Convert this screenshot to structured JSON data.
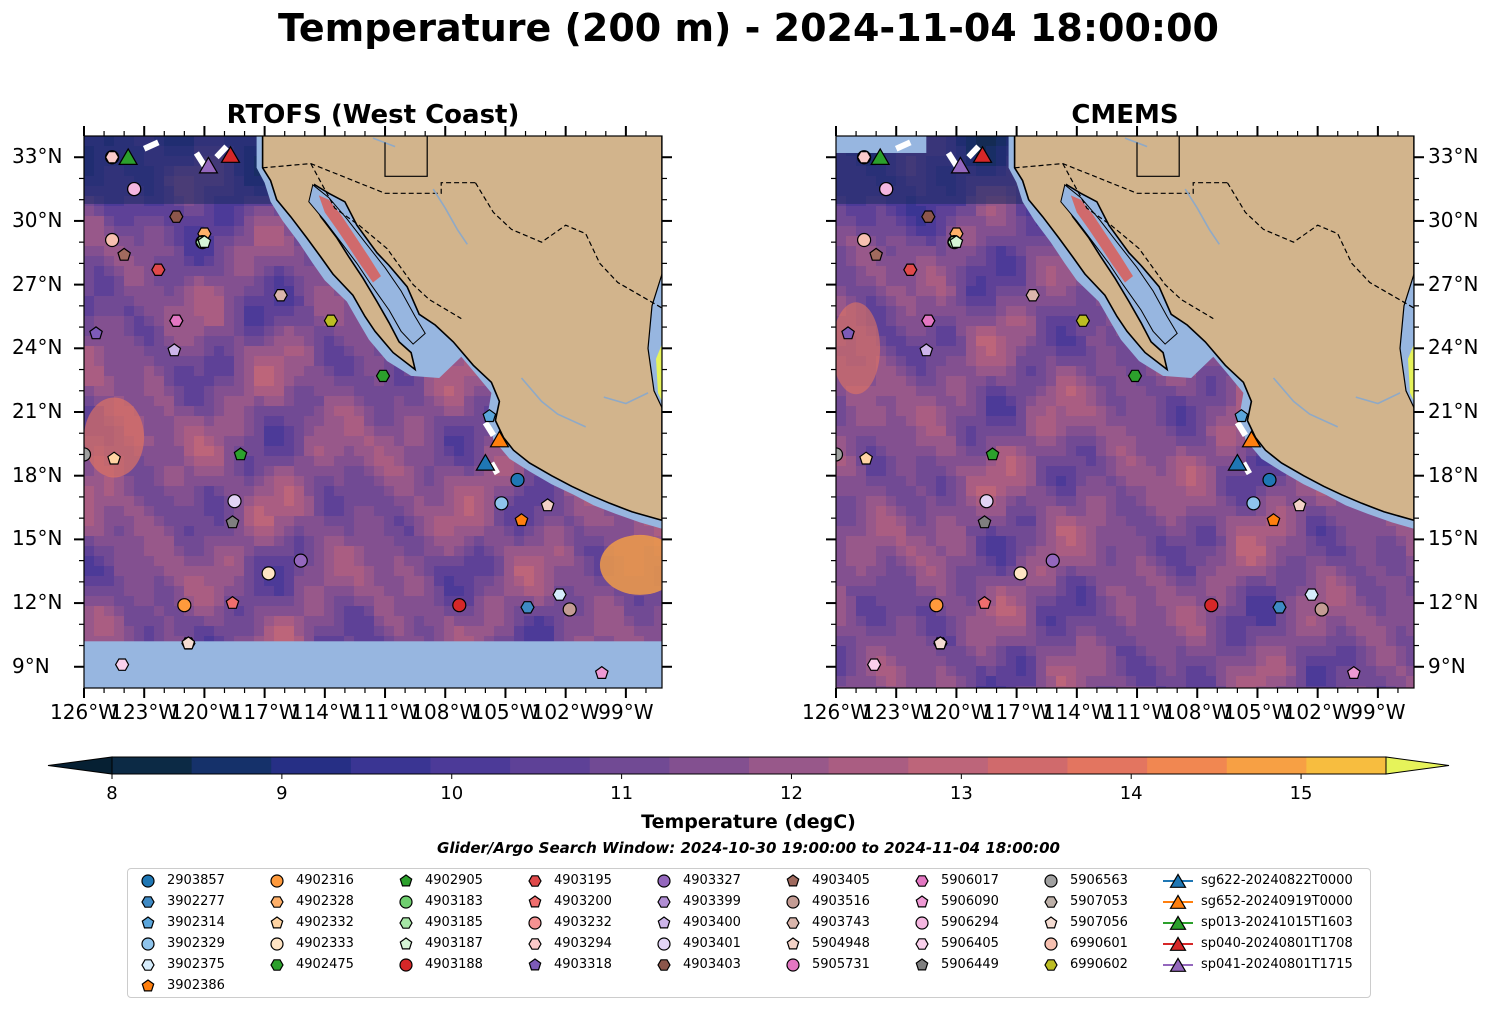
{
  "title": "Temperature (200 m) - 2024-11-04 18:00:00",
  "panels": [
    {
      "title": "RTOFS (West Coast)"
    },
    {
      "title": "CMEMS"
    }
  ],
  "lat_ticks": [
    "33°N",
    "30°N",
    "27°N",
    "24°N",
    "21°N",
    "18°N",
    "15°N",
    "12°N",
    "9°N"
  ],
  "lat_values": [
    33,
    30,
    27,
    24,
    21,
    18,
    15,
    12,
    9
  ],
  "lon_ticks": [
    "126°W",
    "123°W",
    "120°W",
    "117°W",
    "114°W",
    "111°W",
    "108°W",
    "105°W",
    "102°W",
    "99°W"
  ],
  "lon_values": [
    -126,
    -123,
    -120,
    -117,
    -114,
    -111,
    -108,
    -105,
    -102,
    -99
  ],
  "colorbar": {
    "label": "Temperature (degC)",
    "ticks": [
      "8",
      "9",
      "10",
      "11",
      "12",
      "13",
      "14",
      "15"
    ],
    "min": 8,
    "max": 15.5,
    "step": 0.5,
    "colors": [
      "#0c2a45",
      "#15316a",
      "#262f85",
      "#3a3593",
      "#4c3a98",
      "#5e4197",
      "#714a94",
      "#835090",
      "#98588a",
      "#aa5d82",
      "#bd657a",
      "#d06a6c",
      "#e37560",
      "#f18751",
      "#f7a044",
      "#f7bd3f"
    ],
    "under_color": "#062033",
    "over_color": "#e6f35a"
  },
  "search_window": "Glider/Argo Search Window: 2024-10-30 19:00:00 to 2024-11-04 18:00:00",
  "map_colors": {
    "land": "#d2b48c",
    "shelf": "#97b6e0",
    "ocean_base": "#6a4693"
  },
  "chart_data": {
    "type": "map",
    "variable": "Temperature",
    "depth": "200 m",
    "time": "2024-11-04 18:00:00",
    "lon_range": [
      -126,
      -97
    ],
    "lat_range": [
      8,
      34
    ],
    "platforms": [
      {
        "id": "2903857",
        "marker": "circle",
        "color": "#1f77b4",
        "lon": -104.4,
        "lat": 17.8
      },
      {
        "id": "3902277",
        "marker": "hexagon",
        "color": "#3f8ac4",
        "lon": -103.9,
        "lat": 11.8
      },
      {
        "id": "3902314",
        "marker": "pentagon",
        "color": "#5ba6dc",
        "lon": -105.8,
        "lat": 20.8
      },
      {
        "id": "3902329",
        "marker": "circle",
        "color": "#8fc4ec",
        "lon": -105.2,
        "lat": 16.7
      },
      {
        "id": "3902375",
        "marker": "hexagon",
        "color": "#d6ecfb",
        "lon": -102.3,
        "lat": 12.4
      },
      {
        "id": "3902386",
        "marker": "pentagon",
        "color": "#ff7f0e",
        "lon": -104.2,
        "lat": 15.9
      },
      {
        "id": "4902316",
        "marker": "circle",
        "color": "#ff9a3c",
        "lon": -121.0,
        "lat": 11.9
      },
      {
        "id": "4902328",
        "marker": "hexagon",
        "color": "#ffb069",
        "lon": -120.0,
        "lat": 29.4
      },
      {
        "id": "4902332",
        "marker": "pentagon",
        "color": "#ffd4a3",
        "lon": -124.5,
        "lat": 18.8
      },
      {
        "id": "4902333",
        "marker": "circle",
        "color": "#ffe4c4",
        "lon": -116.8,
        "lat": 13.4
      },
      {
        "id": "4902475",
        "marker": "hexagon",
        "color": "#2ca02c",
        "lon": -111.1,
        "lat": 22.7
      },
      {
        "id": "4902905",
        "marker": "pentagon",
        "color": "#2ca02c",
        "lon": -118.2,
        "lat": 19.0
      },
      {
        "id": "4903183",
        "marker": "circle",
        "color": "#6fcf6f",
        "lon": -120.1,
        "lat": 29.0
      },
      {
        "id": "4903185",
        "marker": "hexagon",
        "color": "#a6e6a6",
        "lon": -120.1,
        "lat": 29.0
      },
      {
        "id": "4903187",
        "marker": "pentagon",
        "color": "#d6f5d6",
        "lon": -120.0,
        "lat": 29.0
      },
      {
        "id": "4903188",
        "marker": "circle",
        "color": "#d62728",
        "lon": -107.3,
        "lat": 11.9
      },
      {
        "id": "4903195",
        "marker": "hexagon",
        "color": "#e0494a",
        "lon": -122.3,
        "lat": 27.7
      },
      {
        "id": "4903200",
        "marker": "pentagon",
        "color": "#ef6e6e",
        "lon": -118.6,
        "lat": 12.0
      },
      {
        "id": "4903232",
        "marker": "circle",
        "color": "#f59292",
        "lon": -124.6,
        "lat": 33.0
      },
      {
        "id": "4903294",
        "marker": "hexagon",
        "color": "#fbcaca",
        "lon": -124.6,
        "lat": 33.0
      },
      {
        "id": "4903318",
        "marker": "pentagon",
        "color": "#7d5bb8",
        "lon": -125.4,
        "lat": 24.7
      },
      {
        "id": "4903327",
        "marker": "circle",
        "color": "#9467bd",
        "lon": -115.2,
        "lat": 14.0
      },
      {
        "id": "4903399",
        "marker": "hexagon",
        "color": "#b18ed4",
        "lon": -121.4,
        "lat": 25.3
      },
      {
        "id": "4903400",
        "marker": "pentagon",
        "color": "#cdb5ea",
        "lon": -121.5,
        "lat": 23.9
      },
      {
        "id": "4903401",
        "marker": "circle",
        "color": "#e2d4f5",
        "lon": -118.5,
        "lat": 16.8
      },
      {
        "id": "4903403",
        "marker": "hexagon",
        "color": "#8c564b",
        "lon": -121.4,
        "lat": 30.2
      },
      {
        "id": "4903405",
        "marker": "pentagon",
        "color": "#a06a5e",
        "lon": -124.0,
        "lat": 28.4
      },
      {
        "id": "4903516",
        "marker": "circle",
        "color": "#c49c94",
        "lon": -101.8,
        "lat": 11.7
      },
      {
        "id": "4903743",
        "marker": "hexagon",
        "color": "#dbb6ac",
        "lon": -116.2,
        "lat": 26.5
      },
      {
        "id": "5904948",
        "marker": "pentagon",
        "color": "#f3d2c7",
        "lon": -102.9,
        "lat": 16.6
      },
      {
        "id": "5905731",
        "marker": "circle",
        "color": "#e377c2",
        "lon": -123.5,
        "lat": 31.5
      },
      {
        "id": "5906017",
        "marker": "hexagon",
        "color": "#e377c2",
        "lon": -121.4,
        "lat": 25.3
      },
      {
        "id": "5906090",
        "marker": "pentagon",
        "color": "#ef99d4",
        "lon": -100.2,
        "lat": 8.7
      },
      {
        "id": "5906294",
        "marker": "circle",
        "color": "#f5b6e0",
        "lon": -123.5,
        "lat": 31.5
      },
      {
        "id": "5906405",
        "marker": "hexagon",
        "color": "#fad0ec",
        "lon": -124.1,
        "lat": 9.1
      },
      {
        "id": "5906449",
        "marker": "pentagon",
        "color": "#7f7f7f",
        "lon": -118.6,
        "lat": 15.8
      },
      {
        "id": "5906563",
        "marker": "circle",
        "color": "#a0a0a0",
        "lon": -126.0,
        "lat": 19.0
      },
      {
        "id": "5907053",
        "marker": "hexagon",
        "color": "#bdb0a8",
        "lon": -120.8,
        "lat": 10.1
      },
      {
        "id": "5907056",
        "marker": "pentagon",
        "color": "#f5dcd2",
        "lon": -120.8,
        "lat": 10.1
      },
      {
        "id": "6990601",
        "marker": "circle",
        "color": "#f7c0b0",
        "lon": -124.6,
        "lat": 29.1
      },
      {
        "id": "6990602",
        "marker": "hexagon",
        "color": "#bcbd22",
        "lon": -113.7,
        "lat": 25.3
      }
    ],
    "gliders": [
      {
        "id": "sg622-20240822T0000",
        "marker": "triangle",
        "color": "#1f77b4",
        "lon": -106.0,
        "lat": 18.6
      },
      {
        "id": "sg652-20240919T0000",
        "marker": "triangle",
        "color": "#ff7f0e",
        "lon": -105.3,
        "lat": 19.7
      },
      {
        "id": "sp013-20241015T1603",
        "marker": "triangle",
        "color": "#2ca02c",
        "lon": -123.8,
        "lat": 33.0
      },
      {
        "id": "sp040-20240801T1708",
        "marker": "triangle",
        "color": "#d62728",
        "lon": -118.7,
        "lat": 33.1
      },
      {
        "id": "sp041-20240801T1715",
        "marker": "triangle",
        "color": "#9467bd",
        "lon": -119.8,
        "lat": 32.6
      }
    ]
  },
  "legend_columns": [
    [
      "2903857",
      "3902277",
      "3902314",
      "3902329",
      "3902375",
      "3902386"
    ],
    [
      "4902316",
      "4902328",
      "4902332",
      "4902333",
      "4902475"
    ],
    [
      "4902905",
      "4903183",
      "4903185",
      "4903187",
      "4903188"
    ],
    [
      "4903195",
      "4903200",
      "4903232",
      "4903294",
      "4903318"
    ],
    [
      "4903327",
      "4903399",
      "4903400",
      "4903401",
      "4903403"
    ],
    [
      "4903405",
      "4903516",
      "4903743",
      "5904948",
      "5905731"
    ],
    [
      "5906017",
      "5906090",
      "5906294",
      "5906405",
      "5906449"
    ],
    [
      "5906563",
      "5907053",
      "5907056",
      "6990601",
      "6990602"
    ],
    [
      "sg622-20240822T0000",
      "sg652-20240919T0000",
      "sp013-20241015T1603",
      "sp040-20240801T1708",
      "sp041-20240801T1715"
    ]
  ]
}
